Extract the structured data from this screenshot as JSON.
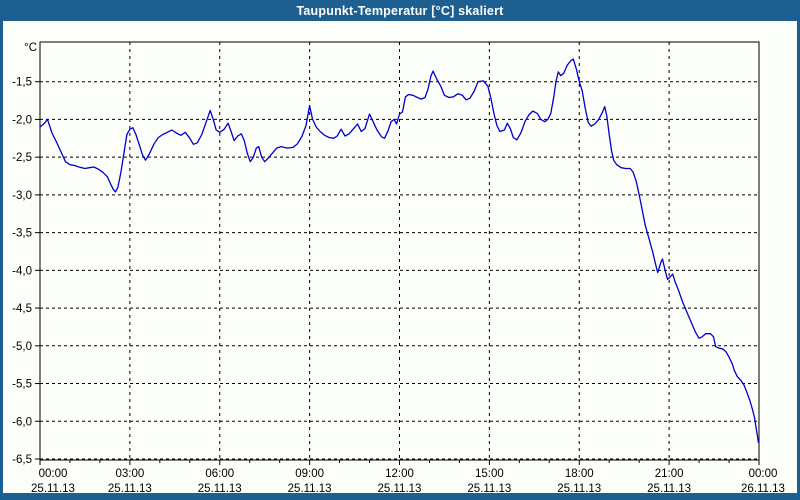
{
  "window": {
    "title": "Taupunkt-Temperatur [°C] skaliert"
  },
  "colors": {
    "titlebar": "#1E5F91",
    "window_background": "#FCFEF9",
    "axis_frame": "#000000",
    "grid": "#000000",
    "tick_text": "#000000",
    "line": "#0000CD"
  },
  "chart_data": {
    "type": "line",
    "title": "Taupunkt-Temperatur [°C] skaliert",
    "y_axis_unit": "°C",
    "ylabel": "",
    "xlabel": "",
    "ylim": [
      -6.5,
      -0.97
    ],
    "x_range_hours": [
      0,
      24
    ],
    "grid": "dashed",
    "legend": "none",
    "line_color": "#0000CD",
    "y_ticks": [
      {
        "value": -1.5,
        "label": "-1,5"
      },
      {
        "value": -2.0,
        "label": "-2,0"
      },
      {
        "value": -2.5,
        "label": "-2,5"
      },
      {
        "value": -3.0,
        "label": "-3,0"
      },
      {
        "value": -3.5,
        "label": "-3,5"
      },
      {
        "value": -4.0,
        "label": "-4,0"
      },
      {
        "value": -4.5,
        "label": "-4,5"
      },
      {
        "value": -5.0,
        "label": "-5,0"
      },
      {
        "value": -5.5,
        "label": "-5,5"
      },
      {
        "value": -6.0,
        "label": "-6,0"
      },
      {
        "value": -6.5,
        "label": "-6,5"
      }
    ],
    "x_ticks": [
      {
        "hour": 0,
        "time": "00:00",
        "date": "25.11.13"
      },
      {
        "hour": 3,
        "time": "03:00",
        "date": "25.11.13"
      },
      {
        "hour": 6,
        "time": "06:00",
        "date": "25.11.13"
      },
      {
        "hour": 9,
        "time": "09:00",
        "date": "25.11.13"
      },
      {
        "hour": 12,
        "time": "12:00",
        "date": "25.11.13"
      },
      {
        "hour": 15,
        "time": "15:00",
        "date": "25.11.13"
      },
      {
        "hour": 18,
        "time": "18:00",
        "date": "25.11.13"
      },
      {
        "hour": 21,
        "time": "21:00",
        "date": "25.11.13"
      },
      {
        "hour": 24,
        "time": "00:00",
        "date": "26.11.13"
      }
    ],
    "series": [
      {
        "name": "Taupunkt-Temperatur",
        "points": [
          [
            0,
            -2.1
          ],
          [
            0.15,
            -2.05
          ],
          [
            0.25,
            -2.0
          ],
          [
            0.4,
            -2.18
          ],
          [
            0.55,
            -2.3
          ],
          [
            0.7,
            -2.43
          ],
          [
            0.85,
            -2.56
          ],
          [
            1.0,
            -2.6
          ],
          [
            1.15,
            -2.61
          ],
          [
            1.3,
            -2.63
          ],
          [
            1.5,
            -2.65
          ],
          [
            1.65,
            -2.64
          ],
          [
            1.8,
            -2.63
          ],
          [
            1.95,
            -2.66
          ],
          [
            2.1,
            -2.7
          ],
          [
            2.25,
            -2.76
          ],
          [
            2.35,
            -2.85
          ],
          [
            2.45,
            -2.93
          ],
          [
            2.52,
            -2.96
          ],
          [
            2.6,
            -2.9
          ],
          [
            2.7,
            -2.7
          ],
          [
            2.8,
            -2.45
          ],
          [
            2.9,
            -2.2
          ],
          [
            3.0,
            -2.13
          ],
          [
            3.1,
            -2.11
          ],
          [
            3.2,
            -2.2
          ],
          [
            3.3,
            -2.32
          ],
          [
            3.42,
            -2.47
          ],
          [
            3.52,
            -2.54
          ],
          [
            3.65,
            -2.46
          ],
          [
            3.8,
            -2.33
          ],
          [
            3.95,
            -2.24
          ],
          [
            4.1,
            -2.2
          ],
          [
            4.25,
            -2.17
          ],
          [
            4.4,
            -2.14
          ],
          [
            4.55,
            -2.18
          ],
          [
            4.7,
            -2.21
          ],
          [
            4.85,
            -2.17
          ],
          [
            5.0,
            -2.25
          ],
          [
            5.12,
            -2.33
          ],
          [
            5.25,
            -2.31
          ],
          [
            5.4,
            -2.2
          ],
          [
            5.55,
            -2.03
          ],
          [
            5.68,
            -1.88
          ],
          [
            5.78,
            -2.0
          ],
          [
            5.88,
            -2.14
          ],
          [
            6.0,
            -2.17
          ],
          [
            6.15,
            -2.13
          ],
          [
            6.28,
            -2.05
          ],
          [
            6.38,
            -2.16
          ],
          [
            6.48,
            -2.28
          ],
          [
            6.6,
            -2.22
          ],
          [
            6.72,
            -2.19
          ],
          [
            6.82,
            -2.28
          ],
          [
            6.92,
            -2.45
          ],
          [
            7.02,
            -2.56
          ],
          [
            7.12,
            -2.5
          ],
          [
            7.22,
            -2.38
          ],
          [
            7.3,
            -2.36
          ],
          [
            7.4,
            -2.5
          ],
          [
            7.5,
            -2.56
          ],
          [
            7.62,
            -2.51
          ],
          [
            7.75,
            -2.45
          ],
          [
            7.9,
            -2.38
          ],
          [
            8.05,
            -2.36
          ],
          [
            8.25,
            -2.38
          ],
          [
            8.45,
            -2.37
          ],
          [
            8.6,
            -2.32
          ],
          [
            8.75,
            -2.22
          ],
          [
            8.88,
            -2.08
          ],
          [
            9.0,
            -1.82
          ],
          [
            9.1,
            -2.0
          ],
          [
            9.22,
            -2.1
          ],
          [
            9.35,
            -2.16
          ],
          [
            9.5,
            -2.21
          ],
          [
            9.65,
            -2.24
          ],
          [
            9.8,
            -2.25
          ],
          [
            9.92,
            -2.22
          ],
          [
            10.05,
            -2.13
          ],
          [
            10.18,
            -2.22
          ],
          [
            10.32,
            -2.19
          ],
          [
            10.45,
            -2.13
          ],
          [
            10.6,
            -2.06
          ],
          [
            10.72,
            -2.16
          ],
          [
            10.85,
            -2.12
          ],
          [
            11.0,
            -1.93
          ],
          [
            11.12,
            -2.03
          ],
          [
            11.25,
            -2.14
          ],
          [
            11.4,
            -2.23
          ],
          [
            11.5,
            -2.25
          ],
          [
            11.62,
            -2.15
          ],
          [
            11.72,
            -2.03
          ],
          [
            11.82,
            -2.0
          ],
          [
            11.9,
            -2.06
          ],
          [
            12.0,
            -1.93
          ],
          [
            12.1,
            -1.9
          ],
          [
            12.2,
            -1.7
          ],
          [
            12.3,
            -1.67
          ],
          [
            12.45,
            -1.68
          ],
          [
            12.6,
            -1.71
          ],
          [
            12.72,
            -1.73
          ],
          [
            12.85,
            -1.71
          ],
          [
            12.95,
            -1.6
          ],
          [
            13.05,
            -1.42
          ],
          [
            13.12,
            -1.36
          ],
          [
            13.25,
            -1.47
          ],
          [
            13.38,
            -1.56
          ],
          [
            13.5,
            -1.68
          ],
          [
            13.65,
            -1.71
          ],
          [
            13.8,
            -1.7
          ],
          [
            13.95,
            -1.66
          ],
          [
            14.1,
            -1.68
          ],
          [
            14.22,
            -1.74
          ],
          [
            14.35,
            -1.72
          ],
          [
            14.5,
            -1.62
          ],
          [
            14.62,
            -1.5
          ],
          [
            14.8,
            -1.49
          ],
          [
            14.95,
            -1.56
          ],
          [
            15.05,
            -1.72
          ],
          [
            15.15,
            -1.92
          ],
          [
            15.25,
            -2.08
          ],
          [
            15.35,
            -2.16
          ],
          [
            15.5,
            -2.14
          ],
          [
            15.6,
            -2.05
          ],
          [
            15.7,
            -2.12
          ],
          [
            15.8,
            -2.24
          ],
          [
            15.92,
            -2.27
          ],
          [
            16.05,
            -2.18
          ],
          [
            16.2,
            -2.02
          ],
          [
            16.32,
            -1.94
          ],
          [
            16.45,
            -1.89
          ],
          [
            16.6,
            -1.92
          ],
          [
            16.72,
            -2.0
          ],
          [
            16.85,
            -2.03
          ],
          [
            16.95,
            -2.0
          ],
          [
            17.05,
            -1.92
          ],
          [
            17.15,
            -1.7
          ],
          [
            17.22,
            -1.5
          ],
          [
            17.3,
            -1.37
          ],
          [
            17.38,
            -1.42
          ],
          [
            17.48,
            -1.39
          ],
          [
            17.6,
            -1.28
          ],
          [
            17.72,
            -1.22
          ],
          [
            17.8,
            -1.2
          ],
          [
            17.9,
            -1.33
          ],
          [
            18.0,
            -1.5
          ],
          [
            18.1,
            -1.62
          ],
          [
            18.2,
            -1.85
          ],
          [
            18.3,
            -2.04
          ],
          [
            18.4,
            -2.09
          ],
          [
            18.52,
            -2.06
          ],
          [
            18.65,
            -2.0
          ],
          [
            18.78,
            -1.9
          ],
          [
            18.85,
            -1.83
          ],
          [
            18.92,
            -1.95
          ],
          [
            19.0,
            -2.2
          ],
          [
            19.08,
            -2.42
          ],
          [
            19.15,
            -2.54
          ],
          [
            19.25,
            -2.6
          ],
          [
            19.4,
            -2.64
          ],
          [
            19.55,
            -2.65
          ],
          [
            19.7,
            -2.65
          ],
          [
            19.8,
            -2.7
          ],
          [
            19.9,
            -2.82
          ],
          [
            20.0,
            -3.0
          ],
          [
            20.1,
            -3.2
          ],
          [
            20.2,
            -3.4
          ],
          [
            20.32,
            -3.57
          ],
          [
            20.45,
            -3.75
          ],
          [
            20.55,
            -3.92
          ],
          [
            20.62,
            -4.03
          ],
          [
            20.72,
            -3.9
          ],
          [
            20.78,
            -3.85
          ],
          [
            20.88,
            -4.02
          ],
          [
            20.95,
            -4.12
          ],
          [
            21.05,
            -4.08
          ],
          [
            21.12,
            -4.05
          ],
          [
            21.2,
            -4.15
          ],
          [
            21.3,
            -4.25
          ],
          [
            21.45,
            -4.42
          ],
          [
            21.6,
            -4.56
          ],
          [
            21.75,
            -4.7
          ],
          [
            21.88,
            -4.82
          ],
          [
            22.0,
            -4.9
          ],
          [
            22.1,
            -4.88
          ],
          [
            22.22,
            -4.84
          ],
          [
            22.38,
            -4.84
          ],
          [
            22.48,
            -4.88
          ],
          [
            22.55,
            -5.01
          ],
          [
            22.65,
            -5.03
          ],
          [
            22.78,
            -5.04
          ],
          [
            22.9,
            -5.08
          ],
          [
            23.0,
            -5.15
          ],
          [
            23.1,
            -5.23
          ],
          [
            23.18,
            -5.33
          ],
          [
            23.28,
            -5.41
          ],
          [
            23.4,
            -5.46
          ],
          [
            23.5,
            -5.52
          ],
          [
            23.6,
            -5.62
          ],
          [
            23.7,
            -5.73
          ],
          [
            23.78,
            -5.84
          ],
          [
            23.85,
            -5.95
          ],
          [
            23.9,
            -6.08
          ],
          [
            23.95,
            -6.2
          ],
          [
            23.98,
            -6.28
          ]
        ]
      }
    ]
  }
}
